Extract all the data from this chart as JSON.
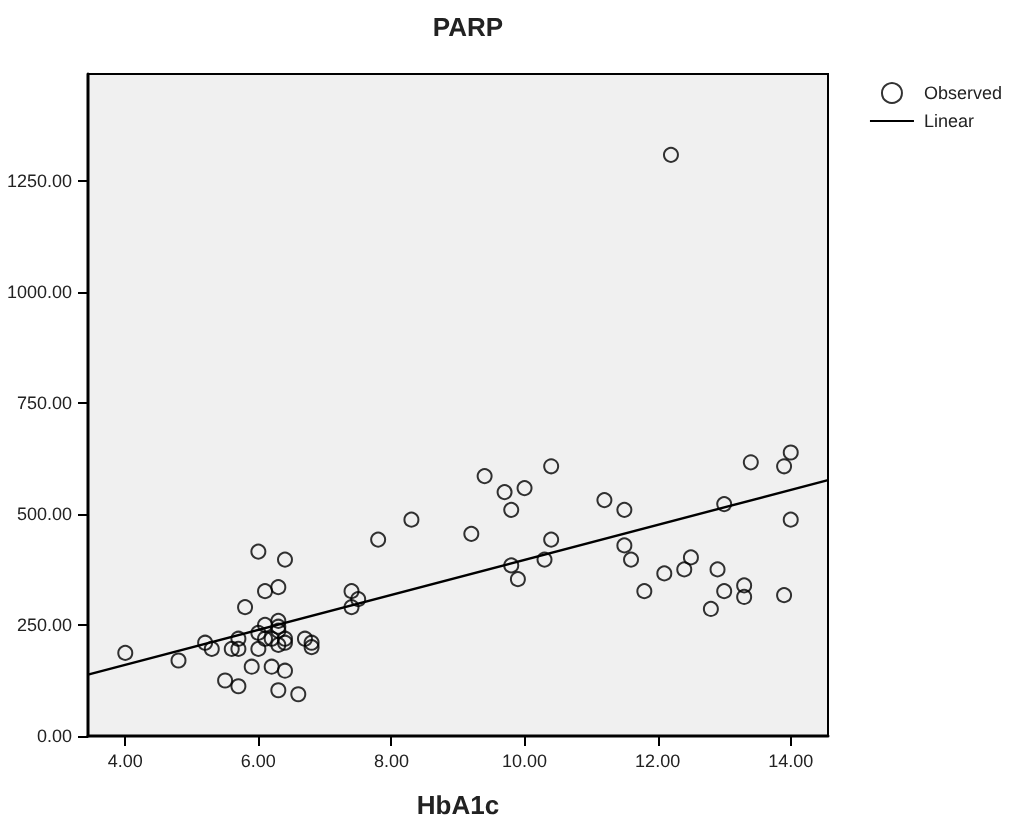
{
  "chart_data": {
    "type": "scatter",
    "title": "PARP",
    "xlabel": "HbA1c",
    "xlim": [
      3.44,
      14.56
    ],
    "ylim": [
      0,
      1490
    ],
    "xticks": [
      {
        "value": 4,
        "label": "4.00"
      },
      {
        "value": 6,
        "label": "6.00"
      },
      {
        "value": 8,
        "label": "8.00"
      },
      {
        "value": 10,
        "label": "10.00"
      },
      {
        "value": 12,
        "label": "12.00"
      },
      {
        "value": 14,
        "label": "14.00"
      }
    ],
    "yticks": [
      {
        "value": 0,
        "label": "0.00"
      },
      {
        "value": 250,
        "label": "250.00"
      },
      {
        "value": 500,
        "label": "500.00"
      },
      {
        "value": 750,
        "label": "750.00"
      },
      {
        "value": 1000,
        "label": "1000.00"
      },
      {
        "value": 1250,
        "label": "1250.00"
      }
    ],
    "grid": false,
    "legend": "top right",
    "marker": "circle",
    "series": [
      {
        "name": "Observed",
        "color": "#000000",
        "x": [
          4.0,
          4.8,
          5.2,
          5.3,
          5.5,
          5.6,
          5.7,
          5.7,
          5.7,
          5.8,
          5.9,
          6.0,
          6.0,
          6.0,
          6.1,
          6.1,
          6.1,
          6.2,
          6.2,
          6.3,
          6.3,
          6.3,
          6.3,
          6.3,
          6.3,
          6.4,
          6.4,
          6.4,
          6.4,
          6.6,
          6.7,
          6.8,
          6.8,
          7.4,
          7.5,
          7.4,
          7.8,
          8.3,
          9.2,
          9.4,
          9.7,
          9.8,
          9.8,
          9.9,
          10.0,
          10.3,
          10.4,
          10.4,
          11.2,
          11.5,
          11.5,
          11.6,
          11.8,
          12.1,
          12.2,
          12.4,
          12.5,
          12.8,
          12.9,
          13.0,
          13.0,
          13.3,
          13.3,
          13.4,
          13.9,
          14.0,
          14.0,
          13.9
        ],
        "values": [
          187,
          170,
          210,
          196,
          125,
          196,
          112,
          219,
          196,
          290,
          156,
          415,
          232,
          196,
          326,
          250,
          219,
          156,
          219,
          335,
          259,
          246,
          237,
          205,
          103,
          397,
          219,
          147,
          210,
          94,
          219,
          210,
          200,
          326,
          308,
          290,
          442,
          487,
          455,
          585,
          549,
          509,
          384,
          353,
          558,
          397,
          607,
          442,
          531,
          509,
          429,
          397,
          326,
          366,
          1308,
          375,
          402,
          286,
          375,
          522,
          326,
          339,
          313,
          616,
          607,
          638,
          487,
          317
        ]
      },
      {
        "name": "Linear",
        "type": "line",
        "color": "#000000",
        "marker": "none",
        "x": [
          3.44,
          14.56
        ],
        "values": [
          138,
          576
        ]
      }
    ]
  }
}
